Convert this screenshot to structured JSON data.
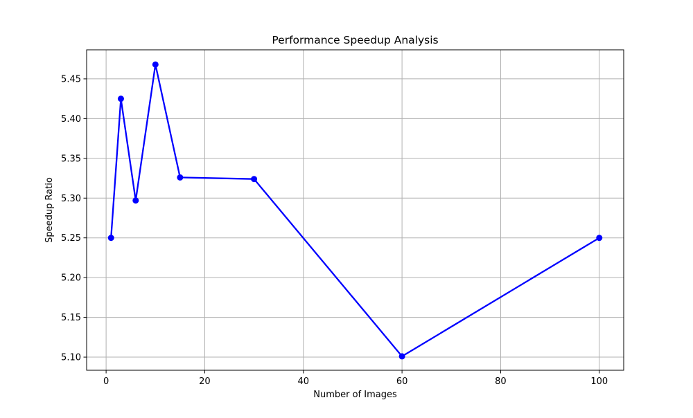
{
  "chart_data": {
    "type": "line",
    "title": "Performance Speedup Analysis",
    "xlabel": "Number of Images",
    "ylabel": "Speedup Ratio",
    "xlim": [
      -3.95,
      104.95
    ],
    "ylim": [
      5.0835,
      5.4865
    ],
    "xticks": [
      0,
      20,
      40,
      60,
      80,
      100
    ],
    "yticks": [
      5.1,
      5.15,
      5.2,
      5.25,
      5.3,
      5.35,
      5.4,
      5.45
    ],
    "grid": true,
    "series": [
      {
        "color": "#0000ff",
        "marker": "circle",
        "x": [
          1,
          3,
          6,
          10,
          15,
          30,
          60,
          100
        ],
        "y": [
          5.25,
          5.425,
          5.297,
          5.468,
          5.326,
          5.324,
          5.101,
          5.25
        ]
      }
    ]
  }
}
